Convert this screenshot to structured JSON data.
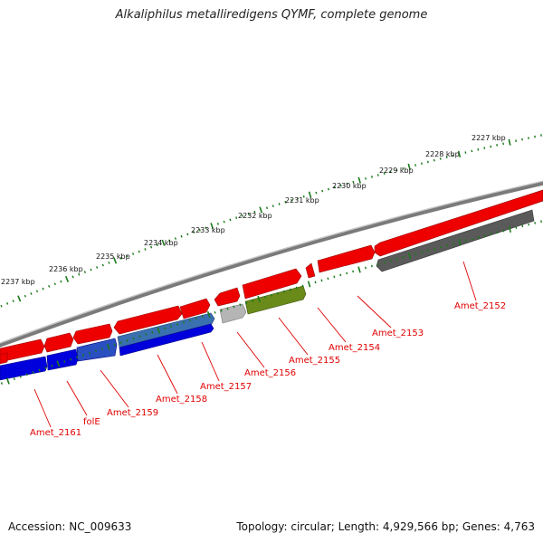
{
  "title": "Alkaliphilus metalliredigens QYMF, complete genome",
  "footer": {
    "accession": "Accession: NC_009633",
    "summary": "Topology: circular; Length: 4,929,566 bp; Genes: 4,763"
  },
  "colors": {
    "forward_cds": "#ee0000",
    "reverse_cds": "#0000dd",
    "reverse_cds_light": "#3a6fb0",
    "rna": "#6a8a1a",
    "pseudo_dark": "#555555",
    "pseudo_light": "#b0b0b0",
    "backbone": "#808080",
    "tick": "#1a7a1a",
    "label": "#e00000"
  },
  "ticks": [
    {
      "label": "2227 kbp"
    },
    {
      "label": "2228 kbp"
    },
    {
      "label": "2229 kbp"
    },
    {
      "label": "2230 kbp"
    },
    {
      "label": "2231 kbp"
    },
    {
      "label": "2232 kbp"
    },
    {
      "label": "2233 kbp"
    },
    {
      "label": "2234 kbp"
    },
    {
      "label": "2235 kbp"
    },
    {
      "label": "2236 kbp"
    },
    {
      "label": "2237 kbp"
    }
  ],
  "genes": [
    {
      "label": "Amet_2152"
    },
    {
      "label": "Amet_2153"
    },
    {
      "label": "Amet_2154"
    },
    {
      "label": "Amet_2155"
    },
    {
      "label": "Amet_2156"
    },
    {
      "label": "Amet_2157"
    },
    {
      "label": "Amet_2158"
    },
    {
      "label": "Amet_2159"
    },
    {
      "label": "folE"
    },
    {
      "label": "Amet_2161"
    }
  ]
}
